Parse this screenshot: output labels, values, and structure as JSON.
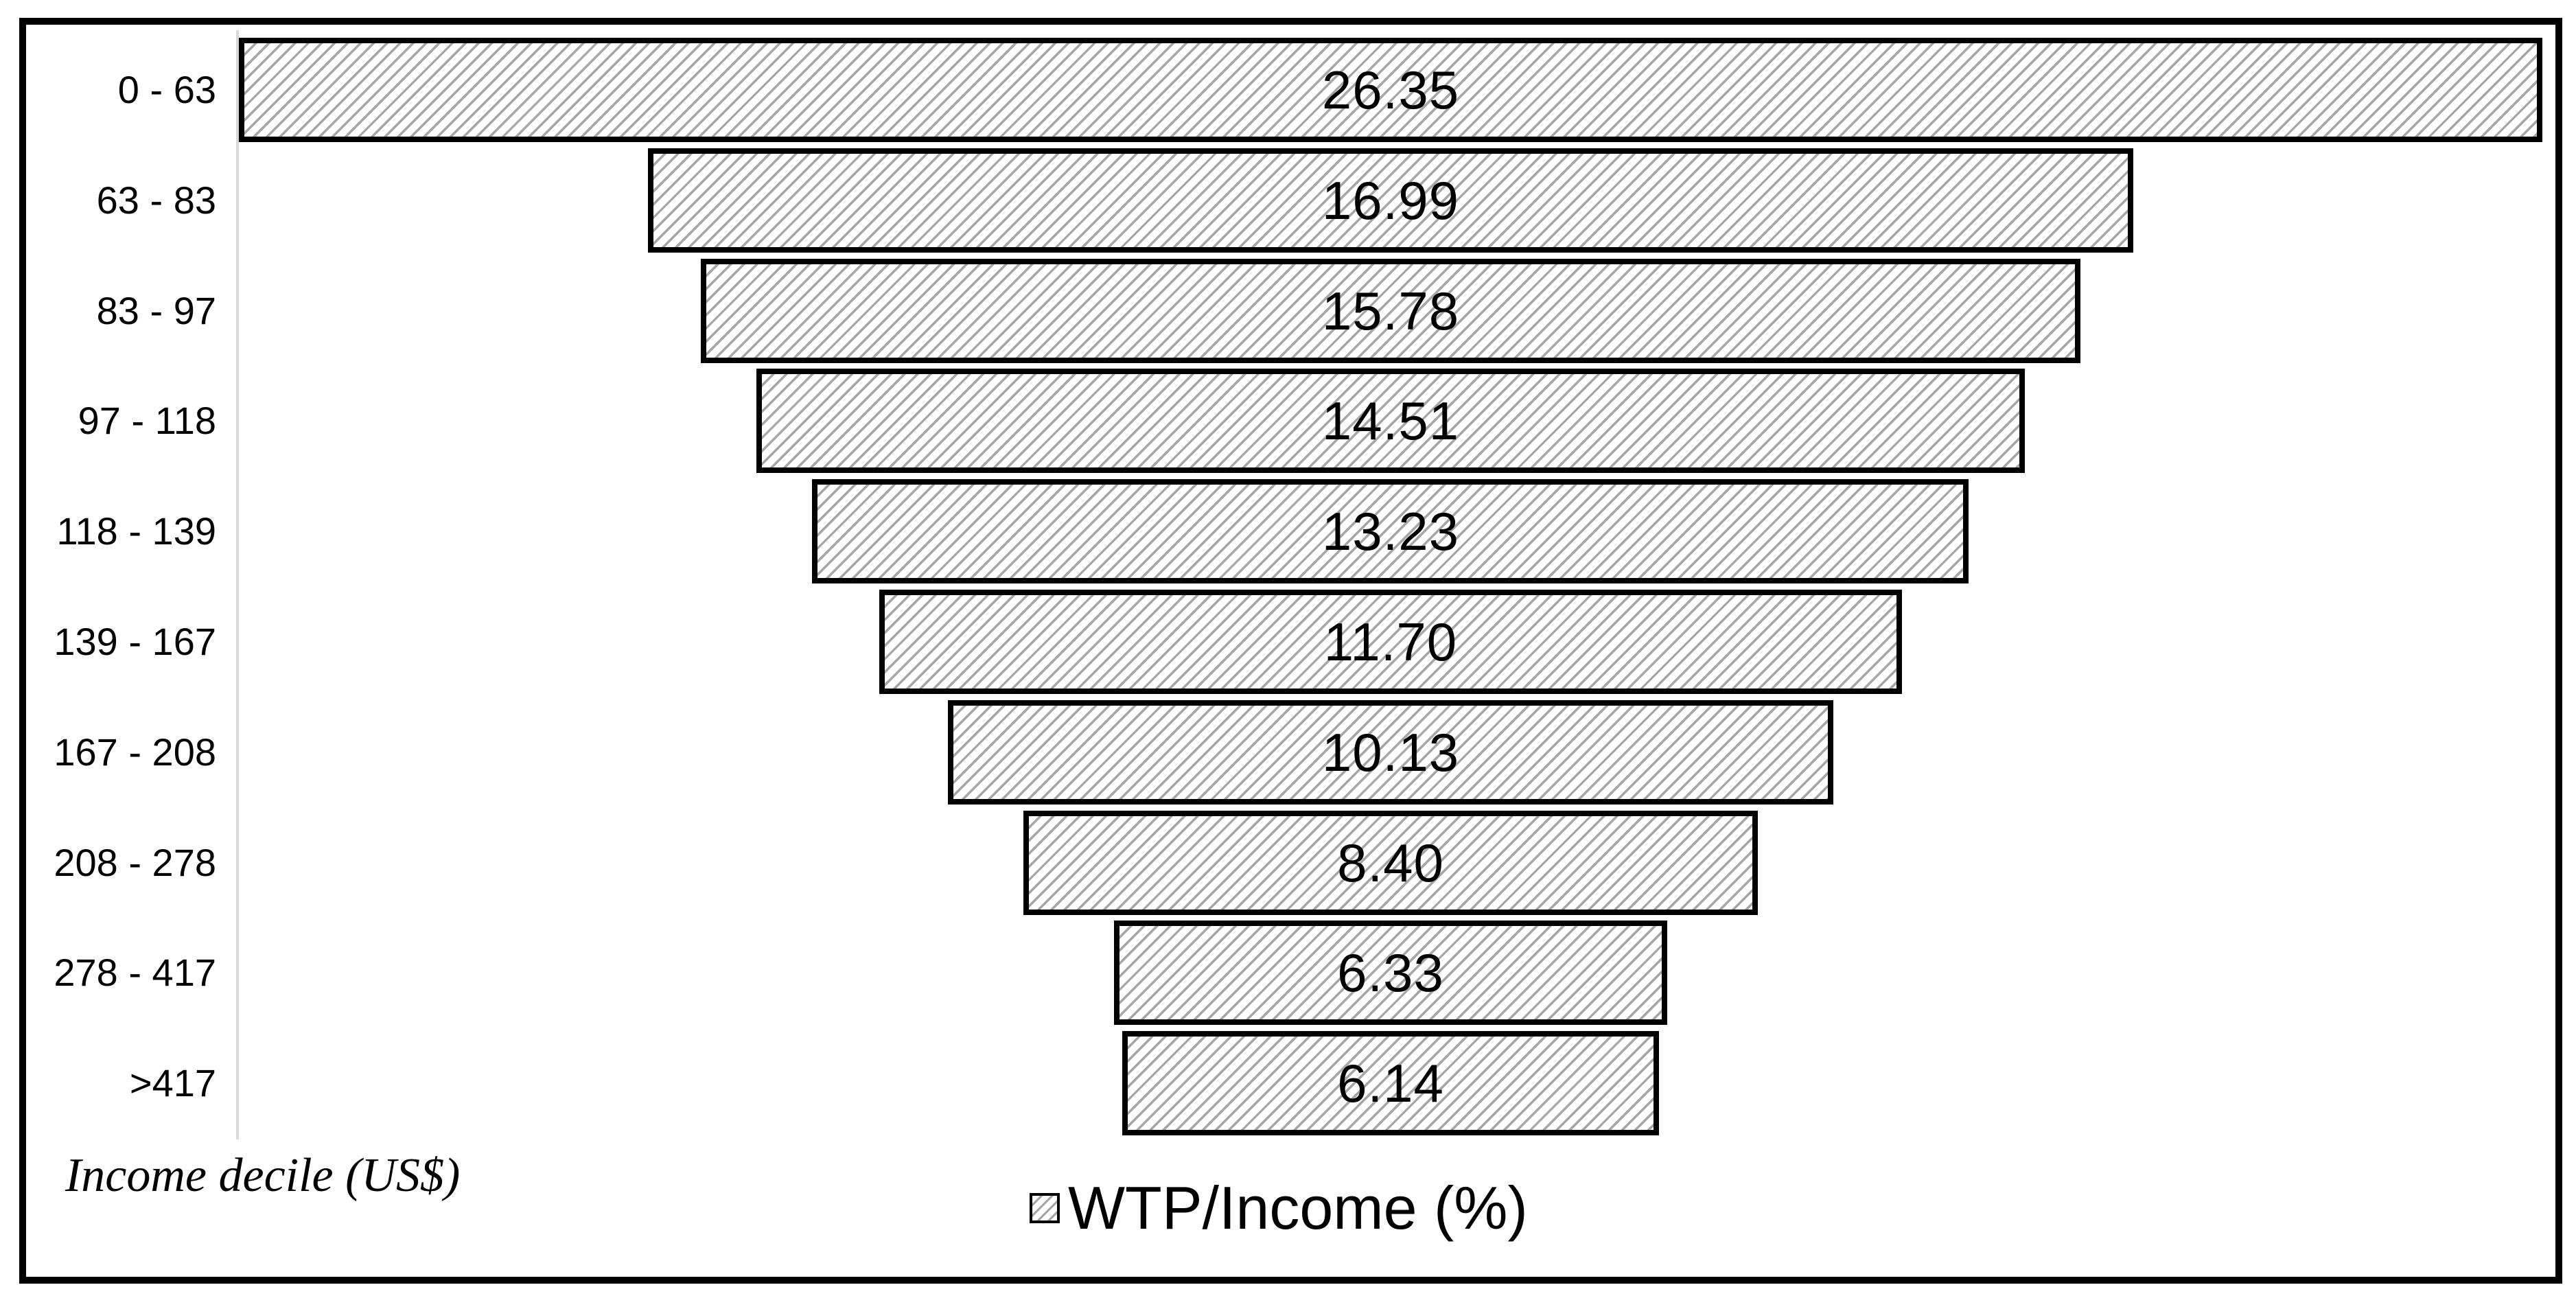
{
  "chart_data": {
    "type": "bar",
    "subtype": "horizontal-centered-funnel",
    "title": "",
    "categories": [
      "0 - 63",
      "63 - 83",
      "83 - 97",
      "97 - 118",
      "118 - 139",
      "139 - 167",
      "167 - 208",
      "208 - 278",
      "278 - 417",
      ">417"
    ],
    "series": [
      {
        "name": "WTP/Income (%)",
        "values": [
          26.35,
          16.99,
          15.78,
          14.51,
          13.23,
          11.7,
          10.13,
          8.4,
          6.33,
          6.14
        ],
        "display_values": [
          "26.35",
          "16.99",
          "15.78",
          "14.51",
          "13.23",
          "11.70",
          "10.13",
          "8.40",
          "6.33",
          "6.14"
        ]
      }
    ],
    "category_axis_label": "Income decile (US$)",
    "xlabel": "",
    "ylabel": "Income decile (US$)",
    "xlim": [
      0,
      26.35
    ],
    "grid": false,
    "legend_position": "bottom-center",
    "value_labels": "inside-center",
    "colors": {
      "bar_fill": "#ffffff",
      "bar_hatch": "#a6a6a6",
      "bar_border": "#000000",
      "frame_border": "#000000",
      "axis_line": "#d9d9d9",
      "text": "#000000",
      "background": "#ffffff"
    },
    "legend_swatch_icon": "hatch-square-icon"
  }
}
